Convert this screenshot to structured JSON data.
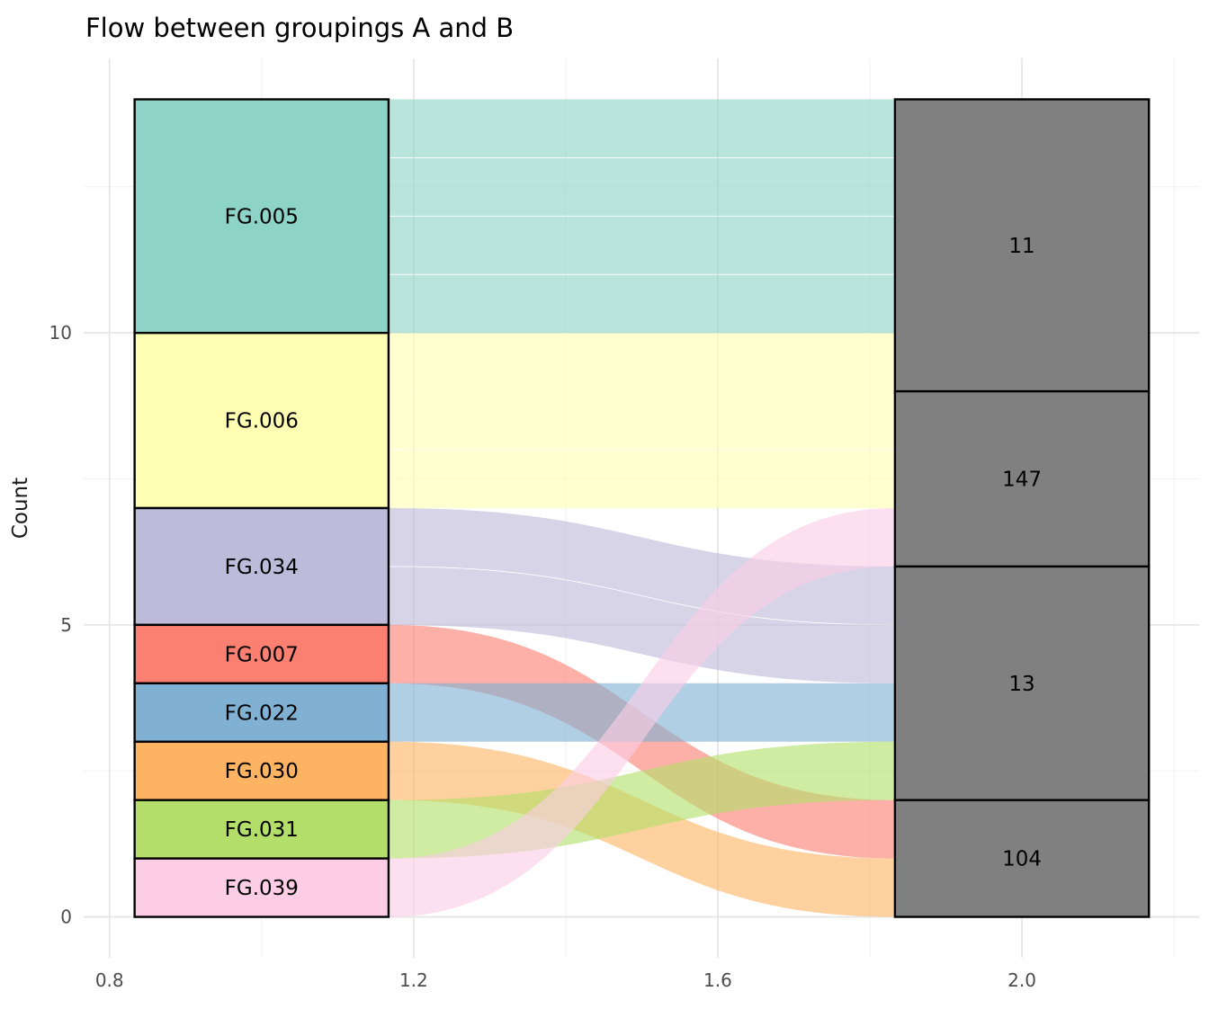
{
  "chart_data": {
    "type": "alluvial",
    "title": "Flow between groupings A and B",
    "ylabel": "Count",
    "xlabel": "",
    "total": 14,
    "x_axis": {
      "tick_labels": [
        "0.8",
        "1.2",
        "1.6",
        "2.0"
      ],
      "ticks": [
        0.8,
        1.2,
        1.6,
        2.0
      ],
      "minor_ticks": [
        1.0,
        1.4,
        1.8,
        2.2
      ],
      "range": [
        0.766,
        2.233
      ]
    },
    "y_axis": {
      "tick_labels": [
        "0",
        "5",
        "10"
      ],
      "ticks": [
        0,
        5,
        10
      ],
      "minor_ticks": [
        2.5,
        7.5,
        12.5
      ],
      "range": [
        -0.7,
        14.7
      ]
    },
    "axes_x": {
      "left": [
        0.833,
        1.167
      ],
      "right": [
        1.833,
        2.167
      ]
    },
    "strata_left": [
      {
        "label": "FG.005",
        "value": 4,
        "color": "#8DD3C7"
      },
      {
        "label": "FG.006",
        "value": 3,
        "color": "#FFFFB3"
      },
      {
        "label": "FG.034",
        "value": 2,
        "color": "#BEBADA"
      },
      {
        "label": "FG.007",
        "value": 1,
        "color": "#FB8072"
      },
      {
        "label": "FG.022",
        "value": 1,
        "color": "#80B1D3"
      },
      {
        "label": "FG.030",
        "value": 1,
        "color": "#FDB462"
      },
      {
        "label": "FG.031",
        "value": 1,
        "color": "#B3DE69"
      },
      {
        "label": "FG.039",
        "value": 1,
        "color": "#FCCDE5"
      }
    ],
    "strata_right": [
      {
        "label": "11",
        "value": 5
      },
      {
        "label": "147",
        "value": 3
      },
      {
        "label": "13",
        "value": 4
      },
      {
        "label": "104",
        "value": 2
      }
    ],
    "right_stratum_color": "#808080",
    "stratum_border_color": "#000000",
    "flows": [
      {
        "from": "FG.005",
        "to": "11",
        "value": 4,
        "color": "#8DD3C7"
      },
      {
        "from": "FG.006",
        "to": "11",
        "value": 1,
        "color": "#FFFFB3"
      },
      {
        "from": "FG.006",
        "to": "147",
        "value": 2,
        "color": "#FFFFB3"
      },
      {
        "from": "FG.034",
        "to": "13",
        "value": 2,
        "color": "#BEBADA"
      },
      {
        "from": "FG.007",
        "to": "104",
        "value": 1,
        "color": "#FB8072"
      },
      {
        "from": "FG.022",
        "to": "13",
        "value": 1,
        "color": "#80B1D3"
      },
      {
        "from": "FG.030",
        "to": "104",
        "value": 1,
        "color": "#FDB462"
      },
      {
        "from": "FG.031",
        "to": "13",
        "value": 1,
        "color": "#B3DE69"
      },
      {
        "from": "FG.039",
        "to": "147",
        "value": 1,
        "color": "#FCCDE5"
      }
    ],
    "flow_opacity": 0.62,
    "grid": {
      "major_color": "#E6E6E6",
      "minor_color": "#F2F2F2"
    },
    "legend_position": "none",
    "grid_on": true
  }
}
